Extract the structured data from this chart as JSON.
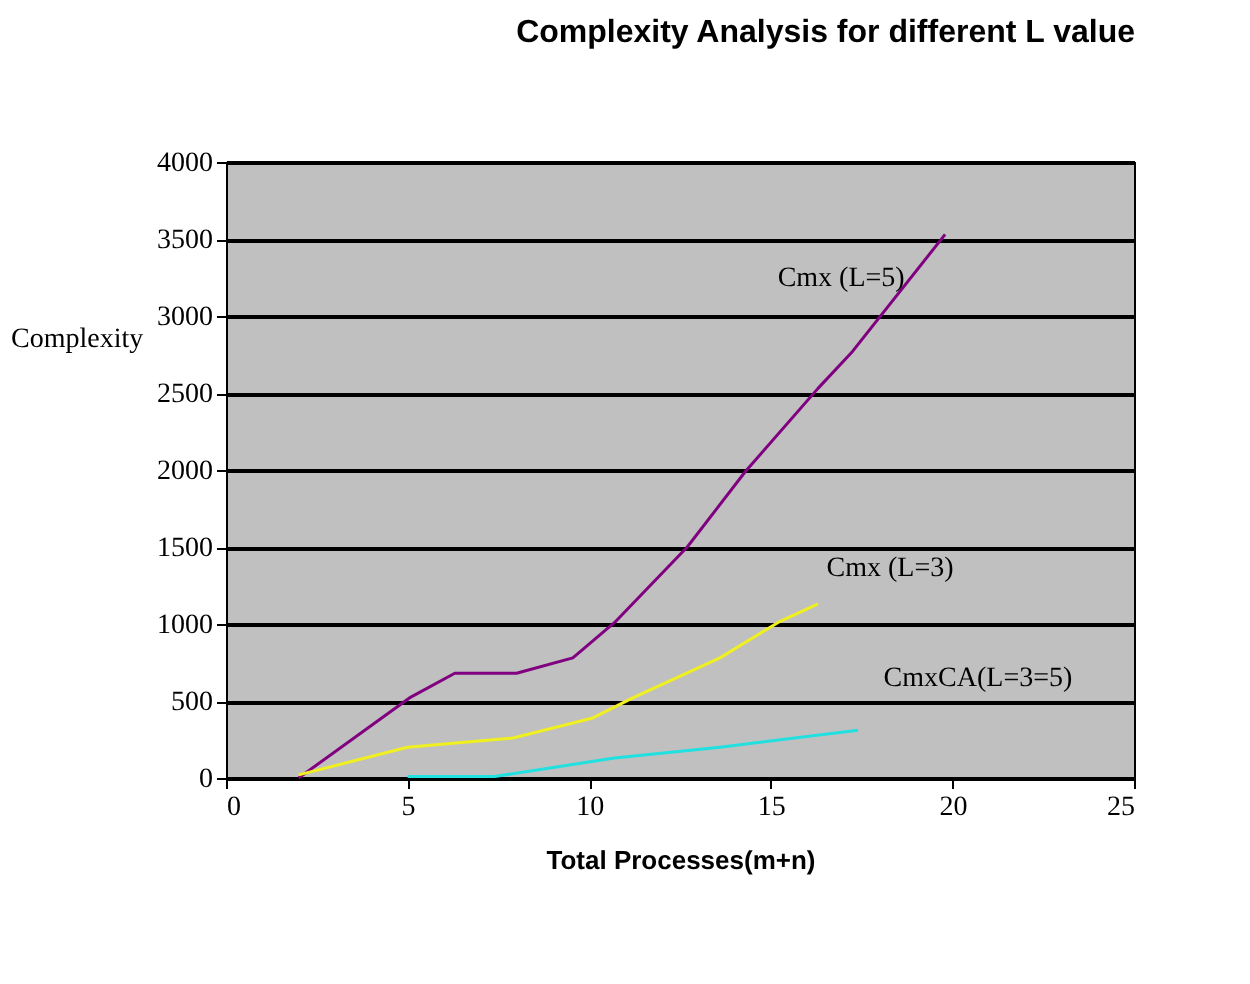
{
  "chart_data": {
    "type": "line",
    "title": "Complexity Analysis for different L value",
    "xlabel": "Total Processes(m+n)",
    "ylabel": "Complexity",
    "xlim": [
      0,
      25
    ],
    "xticks": [
      0,
      5,
      10,
      15,
      20,
      25
    ],
    "ylim": [
      0,
      4000
    ],
    "yticks": [
      0,
      500,
      1000,
      1500,
      2000,
      2500,
      3000,
      3500,
      4000
    ],
    "grid": "y",
    "legend": false,
    "marker": "none",
    "line_style": "solid",
    "series": [
      {
        "name": "Cmx (L=5)",
        "color": "#800080",
        "x": [
          2.0,
          5.05,
          6.3,
          8.0,
          9.55,
          10.7,
          12.7,
          14.3,
          16.3,
          17.25,
          19.8
        ],
        "values": [
          0,
          520,
          680,
          680,
          780,
          1010,
          1500,
          1990,
          2530,
          2770,
          3530
        ]
      },
      {
        "name": "Cmx (L=3)",
        "color": "#f0f020",
        "x": [
          2.0,
          5.0,
          7.9,
          10.1,
          11.2,
          13.6,
          15.2,
          16.3
        ],
        "values": [
          20,
          200,
          260,
          390,
          520,
          780,
          1010,
          1130
        ]
      },
      {
        "name": "CmxCA(L=3=5)",
        "color": "#20e0e0",
        "x": [
          5.0,
          7.4,
          10.7,
          13.6,
          17.4
        ],
        "values": [
          10,
          10,
          130,
          200,
          310
        ]
      }
    ]
  }
}
